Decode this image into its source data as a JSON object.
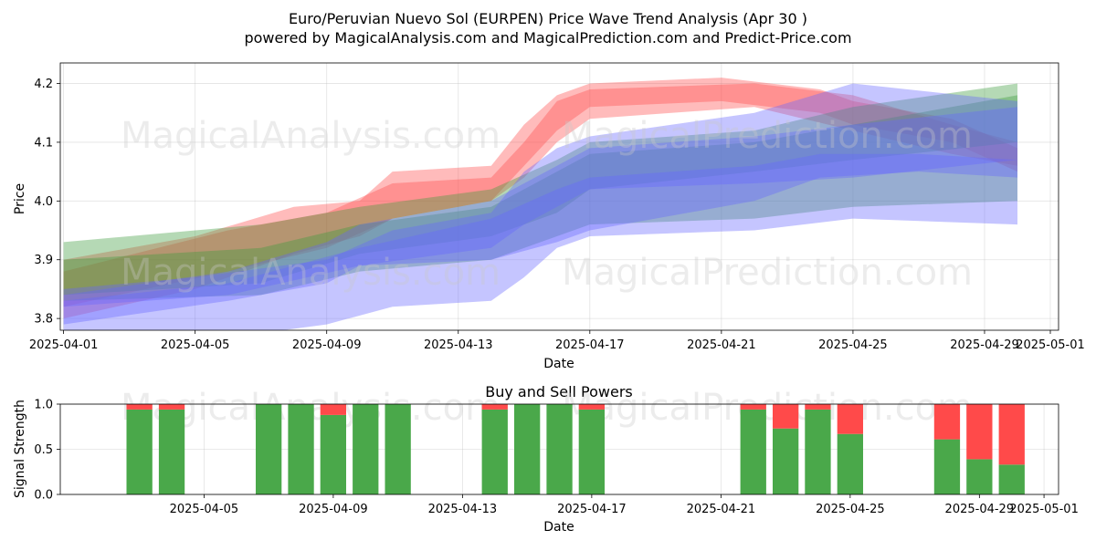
{
  "title_line1": "Euro/Peruvian Nuevo Sol (EURPEN) Price Wave Trend Analysis (Apr 30 )",
  "title_line2": "powered by MagicalAnalysis.com and MagicalPrediction.com and Predict-Price.com",
  "watermarks": [
    "MagicalAnalysis.com",
    "MagicalPrediction.com"
  ],
  "colors": {
    "red": "#ff4d4d",
    "green": "#3c9a3c",
    "blue": "#6666ff",
    "buy": "#4aa84a",
    "sell": "#ff4a4a"
  },
  "chart_data": [
    {
      "type": "area",
      "title": "",
      "xlabel": "Date",
      "ylabel": "Price",
      "x_range": [
        "2025-04-01",
        "2025-05-01"
      ],
      "ylim": [
        3.78,
        4.235
      ],
      "x_ticks": [
        "2025-04-01",
        "2025-04-05",
        "2025-04-09",
        "2025-04-13",
        "2025-04-17",
        "2025-04-21",
        "2025-04-25",
        "2025-04-29",
        "2025-05-01"
      ],
      "y_ticks": [
        3.8,
        3.9,
        4.0,
        4.1,
        4.2
      ],
      "grid": true,
      "bands": [
        {
          "color": "red",
          "x": [
            "2025-04-01",
            "2025-04-05",
            "2025-04-08",
            "2025-04-10",
            "2025-04-11",
            "2025-04-14",
            "2025-04-15",
            "2025-04-16",
            "2025-04-17",
            "2025-04-21",
            "2025-04-24",
            "2025-04-25",
            "2025-04-28",
            "2025-04-30"
          ],
          "upper": [
            3.9,
            3.94,
            3.99,
            4.0,
            4.05,
            4.06,
            4.13,
            4.18,
            4.2,
            4.21,
            4.19,
            4.17,
            4.14,
            4.09
          ],
          "lower": [
            3.8,
            3.85,
            3.91,
            3.94,
            3.97,
            4.0,
            4.06,
            4.12,
            4.16,
            4.17,
            4.15,
            4.13,
            4.1,
            4.05
          ]
        },
        {
          "color": "red",
          "x": [
            "2025-04-01",
            "2025-04-06",
            "2025-04-09",
            "2025-04-11",
            "2025-04-14",
            "2025-04-15",
            "2025-04-16",
            "2025-04-17",
            "2025-04-22",
            "2025-04-25",
            "2025-04-28",
            "2025-04-30"
          ],
          "upper": [
            3.88,
            3.95,
            3.98,
            4.03,
            4.04,
            4.1,
            4.17,
            4.19,
            4.2,
            4.18,
            4.13,
            4.1
          ],
          "lower": [
            3.82,
            3.88,
            3.92,
            3.97,
            4.0,
            4.04,
            4.1,
            4.14,
            4.16,
            4.12,
            4.08,
            4.06
          ]
        },
        {
          "color": "green",
          "x": [
            "2025-04-01",
            "2025-04-07",
            "2025-04-10",
            "2025-04-14",
            "2025-04-16",
            "2025-04-17",
            "2025-04-22",
            "2025-04-25",
            "2025-04-30"
          ],
          "upper": [
            3.93,
            3.96,
            3.99,
            4.02,
            4.07,
            4.1,
            4.12,
            4.16,
            4.2
          ],
          "lower": [
            3.84,
            3.86,
            3.91,
            3.94,
            3.98,
            4.02,
            4.05,
            4.07,
            4.1
          ]
        },
        {
          "color": "green",
          "x": [
            "2025-04-01",
            "2025-04-07",
            "2025-04-10",
            "2025-04-14",
            "2025-04-16",
            "2025-04-17",
            "2025-04-22",
            "2025-04-25",
            "2025-04-30"
          ],
          "upper": [
            3.9,
            3.92,
            3.96,
            3.99,
            4.05,
            4.08,
            4.1,
            4.13,
            4.18
          ],
          "lower": [
            3.83,
            3.84,
            3.88,
            3.9,
            3.94,
            3.96,
            3.97,
            3.99,
            4.0
          ]
        },
        {
          "color": "blue",
          "x": [
            "2025-04-01",
            "2025-04-06",
            "2025-04-09",
            "2025-04-10",
            "2025-04-14",
            "2025-04-15",
            "2025-04-16",
            "2025-04-17",
            "2025-04-22",
            "2025-04-25",
            "2025-04-30"
          ],
          "upper": [
            3.84,
            3.88,
            3.93,
            3.96,
            4.0,
            4.03,
            4.06,
            4.09,
            4.11,
            4.13,
            4.16
          ],
          "lower": [
            3.79,
            3.83,
            3.86,
            3.89,
            3.92,
            3.96,
            3.99,
            4.02,
            4.03,
            4.04,
            4.07
          ]
        },
        {
          "color": "blue",
          "x": [
            "2025-04-01",
            "2025-04-05",
            "2025-04-09",
            "2025-04-11",
            "2025-04-14",
            "2025-04-15",
            "2025-04-16",
            "2025-04-17",
            "2025-04-22",
            "2025-04-25",
            "2025-04-30"
          ],
          "upper": [
            3.85,
            3.87,
            3.9,
            3.95,
            3.98,
            4.05,
            4.09,
            4.11,
            4.15,
            4.2,
            4.17
          ],
          "lower": [
            3.75,
            3.76,
            3.79,
            3.82,
            3.83,
            3.87,
            3.92,
            3.94,
            3.95,
            3.97,
            3.96
          ]
        },
        {
          "color": "blue",
          "x": [
            "2025-04-01",
            "2025-04-06",
            "2025-04-10",
            "2025-04-14",
            "2025-04-16",
            "2025-04-17",
            "2025-04-22",
            "2025-04-24",
            "2025-04-27",
            "2025-04-30"
          ],
          "upper": [
            3.83,
            3.86,
            3.92,
            3.97,
            4.02,
            4.04,
            4.06,
            4.08,
            4.08,
            4.07
          ],
          "lower": [
            3.82,
            3.84,
            3.89,
            3.9,
            3.93,
            3.95,
            4.0,
            4.04,
            4.05,
            4.04
          ]
        }
      ]
    },
    {
      "type": "bar",
      "title": "Buy and Sell Powers",
      "xlabel": "Date",
      "ylabel": "Signal Strength",
      "ylim": [
        0,
        1
      ],
      "y_ticks": [
        0.0,
        0.5,
        1.0
      ],
      "x_ticks": [
        "2025-04-05",
        "2025-04-09",
        "2025-04-13",
        "2025-04-17",
        "2025-04-21",
        "2025-04-25",
        "2025-04-29",
        "2025-05-01"
      ],
      "categories": [
        "2025-04-03",
        "2025-04-04",
        "2025-04-07",
        "2025-04-08",
        "2025-04-09",
        "2025-04-10",
        "2025-04-11",
        "2025-04-14",
        "2025-04-15",
        "2025-04-16",
        "2025-04-17",
        "2025-04-22",
        "2025-04-23",
        "2025-04-24",
        "2025-04-25",
        "2025-04-28",
        "2025-04-29",
        "2025-04-30"
      ],
      "series": [
        {
          "key": "buy",
          "values": [
            0.94,
            0.94,
            1.0,
            1.0,
            0.88,
            1.0,
            1.0,
            0.94,
            1.0,
            1.0,
            0.94,
            0.94,
            0.73,
            0.94,
            0.67,
            0.61,
            0.39,
            0.33
          ]
        },
        {
          "key": "sell",
          "values": [
            0.06,
            0.06,
            0.0,
            0.0,
            0.12,
            0.0,
            0.0,
            0.06,
            0.0,
            0.0,
            0.06,
            0.06,
            0.27,
            0.06,
            0.33,
            0.39,
            0.61,
            0.67
          ]
        }
      ]
    }
  ]
}
